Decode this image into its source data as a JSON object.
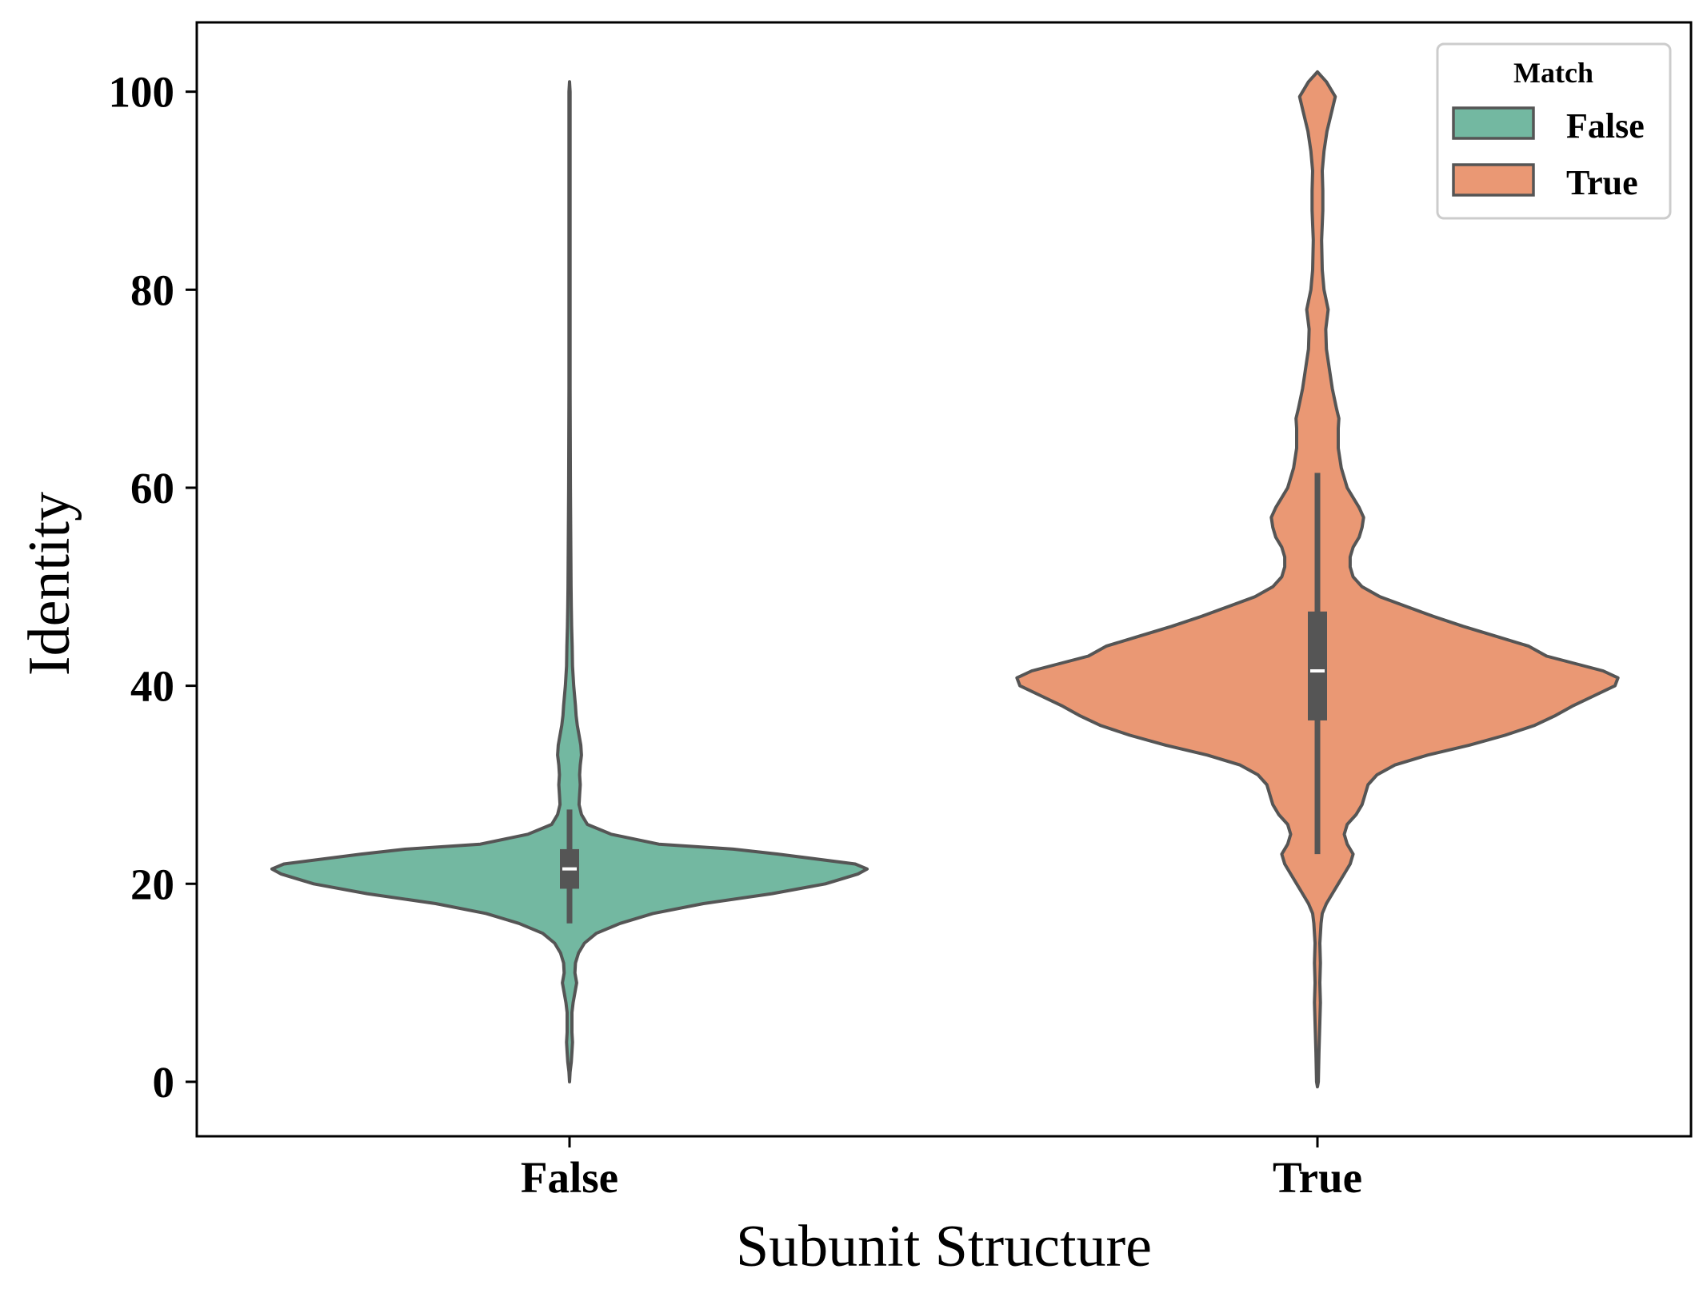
{
  "chart_data": {
    "type": "violin",
    "title": "",
    "xlabel": "Subunit Structure",
    "ylabel": "Identity",
    "ylim": [
      -5.5,
      107
    ],
    "yticks": [
      0,
      20,
      40,
      60,
      80,
      100
    ],
    "categories": [
      "False",
      "True"
    ],
    "grid": false,
    "legend": {
      "title": "Match",
      "placement": "top-right",
      "entries": [
        {
          "label": "False",
          "color": "#73b8a1"
        },
        {
          "label": "True",
          "color": "#ea9874"
        }
      ]
    },
    "colors": {
      "outline": "#555555",
      "box": "#555555",
      "median": "#ffffff"
    },
    "violins": [
      {
        "category": "False",
        "hue": "False",
        "color": "#73b8a1",
        "box": {
          "whisker_low": 16,
          "q1": 19.5,
          "median": 21.5,
          "q3": 23.5,
          "whisker_high": 27.5
        },
        "extent": [
          0,
          101
        ],
        "density": [
          [
            0,
            0
          ],
          [
            1,
            0.002
          ],
          [
            2,
            0.006
          ],
          [
            3,
            0.008
          ],
          [
            4,
            0.01
          ],
          [
            5,
            0.008
          ],
          [
            7,
            0.008
          ],
          [
            8,
            0.012
          ],
          [
            9,
            0.018
          ],
          [
            10,
            0.024
          ],
          [
            11,
            0.018
          ],
          [
            12,
            0.02
          ],
          [
            13,
            0.03
          ],
          [
            14,
            0.05
          ],
          [
            15,
            0.09
          ],
          [
            16,
            0.17
          ],
          [
            17,
            0.28
          ],
          [
            18,
            0.45
          ],
          [
            19,
            0.68
          ],
          [
            20,
            0.86
          ],
          [
            21,
            0.97
          ],
          [
            21.5,
            1.0
          ],
          [
            22,
            0.96
          ],
          [
            23,
            0.7
          ],
          [
            23.5,
            0.55
          ],
          [
            24,
            0.3
          ],
          [
            25,
            0.14
          ],
          [
            26,
            0.06
          ],
          [
            27,
            0.04
          ],
          [
            28,
            0.032
          ],
          [
            29,
            0.034
          ],
          [
            30,
            0.036
          ],
          [
            31,
            0.034
          ],
          [
            32,
            0.036
          ],
          [
            33,
            0.04
          ],
          [
            34,
            0.038
          ],
          [
            35,
            0.032
          ],
          [
            36,
            0.026
          ],
          [
            37,
            0.022
          ],
          [
            38,
            0.02
          ],
          [
            40,
            0.014
          ],
          [
            42,
            0.01
          ],
          [
            44,
            0.009
          ],
          [
            46,
            0.007
          ],
          [
            48,
            0.006
          ],
          [
            50,
            0.005
          ],
          [
            55,
            0.004
          ],
          [
            60,
            0.003
          ],
          [
            70,
            0.002
          ],
          [
            80,
            0.002
          ],
          [
            90,
            0.002
          ],
          [
            100,
            0.002
          ],
          [
            101,
            0
          ]
        ]
      },
      {
        "category": "True",
        "hue": "True",
        "color": "#ea9874",
        "box": {
          "whisker_low": 23,
          "q1": 36.5,
          "median": 41.5,
          "q3": 47.5,
          "whisker_high": 61.5
        },
        "extent": [
          -0.5,
          102
        ],
        "density": [
          [
            -0.5,
            0
          ],
          [
            0,
            0.003
          ],
          [
            3,
            0.005
          ],
          [
            6,
            0.008
          ],
          [
            8,
            0.01
          ],
          [
            10,
            0.008
          ],
          [
            12,
            0.01
          ],
          [
            14,
            0.008
          ],
          [
            16,
            0.012
          ],
          [
            17,
            0.016
          ],
          [
            18,
            0.03
          ],
          [
            19,
            0.05
          ],
          [
            20,
            0.07
          ],
          [
            21,
            0.09
          ],
          [
            22,
            0.11
          ],
          [
            23,
            0.12
          ],
          [
            24,
            0.1
          ],
          [
            25,
            0.09
          ],
          [
            26,
            0.1
          ],
          [
            27,
            0.13
          ],
          [
            28,
            0.15
          ],
          [
            29,
            0.16
          ],
          [
            30,
            0.17
          ],
          [
            31,
            0.2
          ],
          [
            32,
            0.26
          ],
          [
            33,
            0.37
          ],
          [
            34,
            0.51
          ],
          [
            35,
            0.63
          ],
          [
            36,
            0.73
          ],
          [
            37,
            0.8
          ],
          [
            38,
            0.86
          ],
          [
            39,
            0.93
          ],
          [
            40,
            1.0
          ],
          [
            40.8,
            1.01
          ],
          [
            41.5,
            0.96
          ],
          [
            43,
            0.77
          ],
          [
            44,
            0.71
          ],
          [
            45,
            0.6
          ],
          [
            46,
            0.49
          ],
          [
            47,
            0.39
          ],
          [
            48,
            0.3
          ],
          [
            49,
            0.21
          ],
          [
            50,
            0.15
          ],
          [
            51,
            0.12
          ],
          [
            52,
            0.11
          ],
          [
            53,
            0.11
          ],
          [
            54,
            0.12
          ],
          [
            55,
            0.14
          ],
          [
            56,
            0.15
          ],
          [
            57,
            0.155
          ],
          [
            58,
            0.14
          ],
          [
            59,
            0.12
          ],
          [
            60,
            0.1
          ],
          [
            62,
            0.08
          ],
          [
            64,
            0.07
          ],
          [
            66,
            0.07
          ],
          [
            67,
            0.072
          ],
          [
            68,
            0.064
          ],
          [
            70,
            0.05
          ],
          [
            72,
            0.04
          ],
          [
            74,
            0.03
          ],
          [
            76,
            0.028
          ],
          [
            78,
            0.036
          ],
          [
            80,
            0.022
          ],
          [
            82,
            0.016
          ],
          [
            85,
            0.014
          ],
          [
            88,
            0.018
          ],
          [
            90,
            0.018
          ],
          [
            92,
            0.016
          ],
          [
            94,
            0.022
          ],
          [
            96,
            0.032
          ],
          [
            98,
            0.048
          ],
          [
            99.5,
            0.06
          ],
          [
            101,
            0.03
          ],
          [
            102,
            0
          ]
        ]
      }
    ]
  }
}
